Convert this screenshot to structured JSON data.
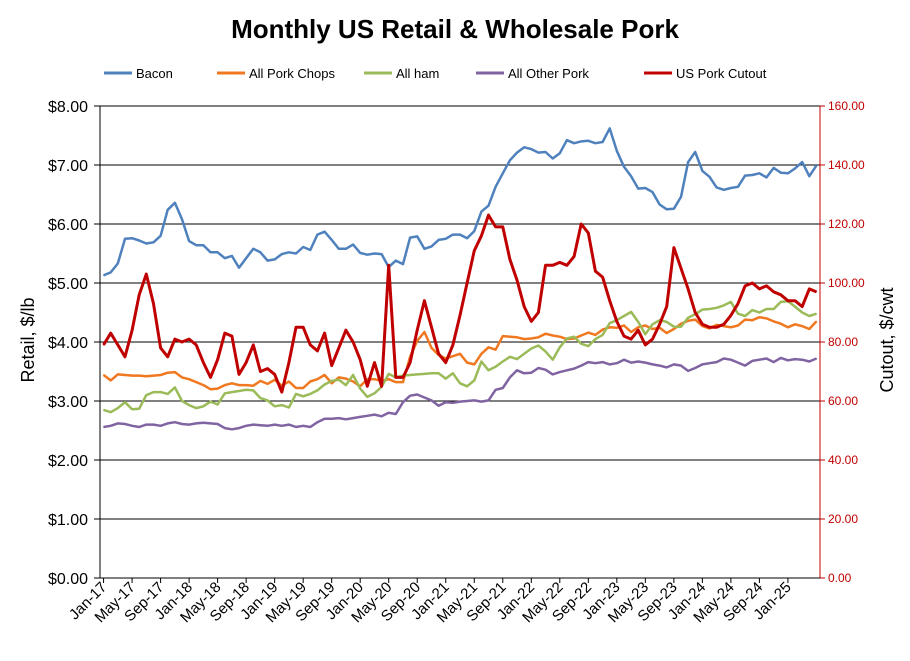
{
  "chart_data": {
    "type": "line",
    "title": "Monthly US Retail & Wholesale Pork",
    "ylabel_left": "Retail, $/lb",
    "ylabel_right": "Cutout, $/cwt",
    "ylim_left": [
      0,
      8
    ],
    "ylim_right": [
      0,
      160
    ],
    "yticks_left": [
      "$0.00",
      "$1.00",
      "$2.00",
      "$3.00",
      "$4.00",
      "$5.00",
      "$6.00",
      "$7.00",
      "$8.00"
    ],
    "yticks_right": [
      "0.00",
      "20.00",
      "40.00",
      "60.00",
      "80.00",
      "100.00",
      "120.00",
      "140.00",
      "160.00"
    ],
    "x_tick_labels": [
      "Jan-17",
      "May-17",
      "Sep-17",
      "Jan-18",
      "May-18",
      "Sep-18",
      "Jan-19",
      "May-19",
      "Sep-19",
      "Jan-20",
      "May-20",
      "Sep-20",
      "Jan-21",
      "May-21",
      "Sep-21",
      "Jan-22",
      "May-22",
      "Sep-22",
      "Jan-23",
      "May-23",
      "Sep-23",
      "Jan-24",
      "May-24",
      "Sep-24",
      "Jan-25"
    ],
    "x_start": "Jan-17",
    "grid": "horizontal",
    "legend_position": "top",
    "series": [
      {
        "name": "Bacon",
        "axis": "left",
        "color": "#4F81BD",
        "values": [
          5.13,
          5.18,
          5.33,
          5.75,
          5.76,
          5.72,
          5.67,
          5.69,
          5.8,
          6.24,
          6.36,
          6.08,
          5.71,
          5.64,
          5.64,
          5.52,
          5.52,
          5.42,
          5.46,
          5.26,
          5.42,
          5.58,
          5.52,
          5.38,
          5.4,
          5.49,
          5.52,
          5.5,
          5.61,
          5.56,
          5.82,
          5.87,
          5.73,
          5.58,
          5.58,
          5.65,
          5.51,
          5.48,
          5.5,
          5.49,
          5.27,
          5.38,
          5.32,
          5.77,
          5.79,
          5.58,
          5.62,
          5.73,
          5.75,
          5.82,
          5.82,
          5.76,
          5.88,
          6.21,
          6.31,
          6.63,
          6.86,
          7.08,
          7.21,
          7.3,
          7.27,
          7.21,
          7.22,
          7.11,
          7.2,
          7.42,
          7.37,
          7.4,
          7.41,
          7.37,
          7.39,
          7.62,
          7.24,
          6.97,
          6.81,
          6.6,
          6.61,
          6.54,
          6.33,
          6.25,
          6.26,
          6.46,
          7.05,
          7.22,
          6.9,
          6.8,
          6.62,
          6.58,
          6.61,
          6.63,
          6.82,
          6.83,
          6.86,
          6.79,
          6.95,
          6.87,
          6.86,
          6.94,
          7.05,
          6.81,
          6.99
        ]
      },
      {
        "name": "All Pork Chops",
        "axis": "left",
        "color": "#F07820",
        "values": [
          3.44,
          3.35,
          3.45,
          3.44,
          3.43,
          3.43,
          3.42,
          3.43,
          3.44,
          3.48,
          3.49,
          3.4,
          3.37,
          3.32,
          3.27,
          3.2,
          3.21,
          3.27,
          3.3,
          3.27,
          3.27,
          3.26,
          3.34,
          3.29,
          3.36,
          3.26,
          3.33,
          3.22,
          3.22,
          3.33,
          3.37,
          3.44,
          3.3,
          3.4,
          3.38,
          3.33,
          3.25,
          3.37,
          3.37,
          3.34,
          3.37,
          3.32,
          3.32,
          3.75,
          4.02,
          4.17,
          3.9,
          3.78,
          3.72,
          3.76,
          3.8,
          3.65,
          3.62,
          3.8,
          3.91,
          3.87,
          4.1,
          4.09,
          4.08,
          4.05,
          4.06,
          4.08,
          4.14,
          4.11,
          4.09,
          4.05,
          4.06,
          4.11,
          4.16,
          4.12,
          4.21,
          4.25,
          4.24,
          4.28,
          4.17,
          4.25,
          4.28,
          4.22,
          4.24,
          4.15,
          4.22,
          4.31,
          4.36,
          4.38,
          4.27,
          4.23,
          4.29,
          4.27,
          4.25,
          4.28,
          4.38,
          4.37,
          4.42,
          4.4,
          4.35,
          4.31,
          4.25,
          4.3,
          4.27,
          4.22,
          4.35
        ]
      },
      {
        "name": "All ham",
        "axis": "left",
        "color": "#9BBB59",
        "values": [
          2.85,
          2.81,
          2.88,
          2.98,
          2.86,
          2.87,
          3.1,
          3.15,
          3.15,
          3.12,
          3.23,
          3.0,
          2.93,
          2.88,
          2.91,
          2.99,
          2.94,
          3.13,
          3.15,
          3.17,
          3.19,
          3.18,
          3.05,
          3.01,
          2.91,
          2.93,
          2.89,
          3.12,
          3.08,
          3.12,
          3.18,
          3.28,
          3.34,
          3.36,
          3.27,
          3.44,
          3.21,
          3.07,
          3.13,
          3.24,
          3.46,
          3.4,
          3.43,
          3.44,
          3.45,
          3.46,
          3.47,
          3.47,
          3.38,
          3.47,
          3.3,
          3.25,
          3.35,
          3.67,
          3.52,
          3.58,
          3.67,
          3.75,
          3.71,
          3.8,
          3.89,
          3.94,
          3.84,
          3.7,
          3.91,
          4.06,
          4.09,
          3.97,
          3.93,
          4.05,
          4.12,
          4.32,
          4.37,
          4.44,
          4.51,
          4.34,
          4.13,
          4.3,
          4.37,
          4.34,
          4.26,
          4.26,
          4.41,
          4.47,
          4.55,
          4.56,
          4.58,
          4.62,
          4.68,
          4.48,
          4.44,
          4.54,
          4.5,
          4.56,
          4.56,
          4.68,
          4.69,
          4.6,
          4.5,
          4.44,
          4.48
        ]
      },
      {
        "name": "All Other Pork",
        "axis": "left",
        "color": "#8064A2",
        "values": [
          2.56,
          2.58,
          2.62,
          2.61,
          2.58,
          2.56,
          2.6,
          2.6,
          2.58,
          2.62,
          2.64,
          2.61,
          2.6,
          2.62,
          2.63,
          2.62,
          2.61,
          2.54,
          2.52,
          2.54,
          2.58,
          2.6,
          2.59,
          2.58,
          2.6,
          2.58,
          2.6,
          2.56,
          2.58,
          2.56,
          2.64,
          2.7,
          2.7,
          2.71,
          2.69,
          2.71,
          2.73,
          2.75,
          2.77,
          2.74,
          2.8,
          2.78,
          2.98,
          3.09,
          3.11,
          3.06,
          3.01,
          2.92,
          2.98,
          2.97,
          2.99,
          3.0,
          3.01,
          2.99,
          3.01,
          3.19,
          3.22,
          3.4,
          3.52,
          3.47,
          3.48,
          3.56,
          3.53,
          3.45,
          3.49,
          3.52,
          3.55,
          3.6,
          3.66,
          3.64,
          3.66,
          3.62,
          3.64,
          3.7,
          3.65,
          3.67,
          3.65,
          3.62,
          3.6,
          3.57,
          3.62,
          3.6,
          3.51,
          3.56,
          3.62,
          3.64,
          3.66,
          3.72,
          3.7,
          3.65,
          3.6,
          3.68,
          3.7,
          3.72,
          3.66,
          3.73,
          3.69,
          3.71,
          3.7,
          3.67,
          3.72
        ]
      },
      {
        "name": "US Pork Cutout",
        "axis": "right",
        "color": "#C00000",
        "values": [
          79,
          83,
          79,
          75,
          84,
          96,
          103,
          93,
          78,
          75,
          81,
          80,
          81,
          79,
          73,
          68,
          74,
          83,
          82,
          69,
          73,
          79,
          70,
          71,
          69,
          63,
          73,
          85,
          85,
          79,
          77,
          83,
          72,
          78,
          84,
          80,
          74,
          65,
          73,
          65,
          106,
          68,
          68,
          73,
          84,
          94,
          85,
          76,
          73,
          79,
          89,
          100,
          111,
          116,
          123,
          119,
          119,
          108,
          101,
          92,
          87,
          90,
          106,
          106,
          107,
          106,
          109,
          120,
          117,
          104,
          102,
          94,
          87,
          82,
          81,
          84,
          79,
          81,
          86,
          92,
          112,
          105,
          98,
          90,
          86,
          85,
          85,
          86,
          89,
          93,
          99,
          100,
          98,
          99,
          97,
          96,
          94,
          94,
          92,
          98,
          97
        ]
      }
    ]
  }
}
